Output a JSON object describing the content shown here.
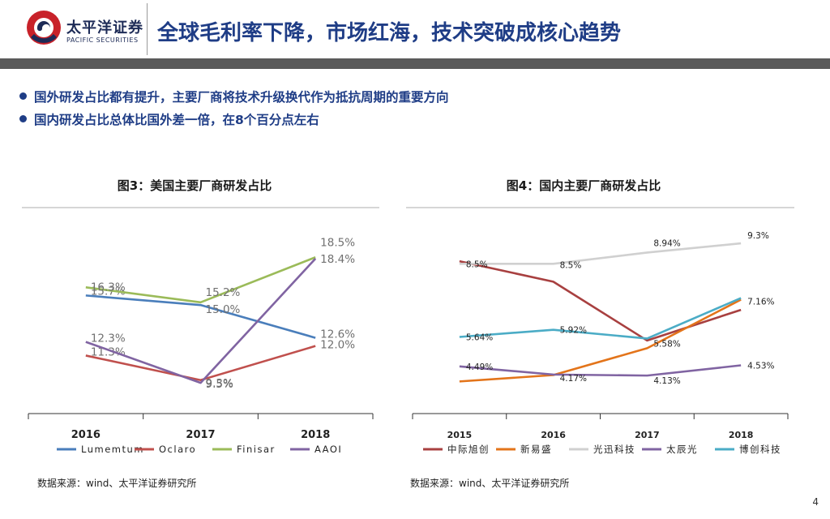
{
  "header": {
    "logo_cn": "太平洋证券",
    "logo_en": "PACIFIC SECURITIES",
    "title": "全球毛利率下降，市场红海，技术突破成核心趋势",
    "page_number": "4"
  },
  "bullets": [
    "国外研发占比都有提升，主要厂商将技术升级换代作为抵抗周期的重要方向",
    "国内研发占比总体比国外差一倍，在8个百分点左右"
  ],
  "colors": {
    "title_blue": "#1f3d86",
    "bar_gray": "#5a5a5a",
    "series_blue": "#4a7ebb",
    "series_red": "#c0504d",
    "series_green": "#9bbb59",
    "series_purple": "#8064a2",
    "series_darkred": "#a84040",
    "series_orange": "#e3741a",
    "series_lightgray": "#d0d0d0",
    "series_cyan": "#4bacc6"
  },
  "chart_data": [
    {
      "type": "line",
      "title": "图3：美国主要厂商研发占比",
      "source": "数据来源：wind、太平洋证券研究所",
      "categories": [
        "2016",
        "2017",
        "2018"
      ],
      "ylim": [
        8,
        20
      ],
      "series": [
        {
          "name": "Lumemtum",
          "color": "#4a7ebb",
          "values": [
            15.7,
            15.0,
            12.6
          ],
          "labels": [
            "15.7%",
            "15.0%",
            "12.6%"
          ]
        },
        {
          "name": "Oclaro",
          "color": "#c0504d",
          "values": [
            11.3,
            9.5,
            12.0
          ],
          "labels": [
            "11.3%",
            "9.5%",
            "12.0%"
          ]
        },
        {
          "name": "Finisar",
          "color": "#9bbb59",
          "values": [
            16.3,
            15.2,
            18.5
          ],
          "labels": [
            "16.3%",
            "15.2%",
            "18.5%"
          ]
        },
        {
          "name": "AAOI",
          "color": "#8064a2",
          "values": [
            12.3,
            9.3,
            18.4
          ],
          "labels": [
            "12.3%",
            "9.3%",
            "18.4%"
          ]
        }
      ]
    },
    {
      "type": "line",
      "title": "图4：国内主要厂商研发占比",
      "source": "数据来源：wind、太平洋证券研究所",
      "categories": [
        "2015",
        "2016",
        "2017",
        "2018"
      ],
      "ylim": [
        3.5,
        10
      ],
      "series": [
        {
          "name": "中际旭创",
          "color": "#a84040",
          "values": [
            8.6,
            7.8,
            5.5,
            6.7
          ],
          "labels": []
        },
        {
          "name": "新易盛",
          "color": "#e3741a",
          "values": [
            3.9,
            4.15,
            5.2,
            7.1
          ],
          "labels": []
        },
        {
          "name": "光迅科技",
          "color": "#d0d0d0",
          "values": [
            8.5,
            8.5,
            8.94,
            9.3
          ],
          "labels": [
            "8.5%",
            "8.5%",
            "8.94%",
            "9.3%"
          ]
        },
        {
          "name": "太辰光",
          "color": "#8064a2",
          "values": [
            4.49,
            4.17,
            4.13,
            4.53
          ],
          "labels": [
            "4.49%",
            "4.17%",
            "4.13%",
            "4.53%"
          ]
        },
        {
          "name": "博创科技",
          "color": "#4bacc6",
          "values": [
            5.64,
            5.92,
            5.58,
            7.16
          ],
          "labels": [
            "5.64%",
            "5.92%",
            "5.58%",
            "7.16%"
          ]
        }
      ]
    }
  ]
}
